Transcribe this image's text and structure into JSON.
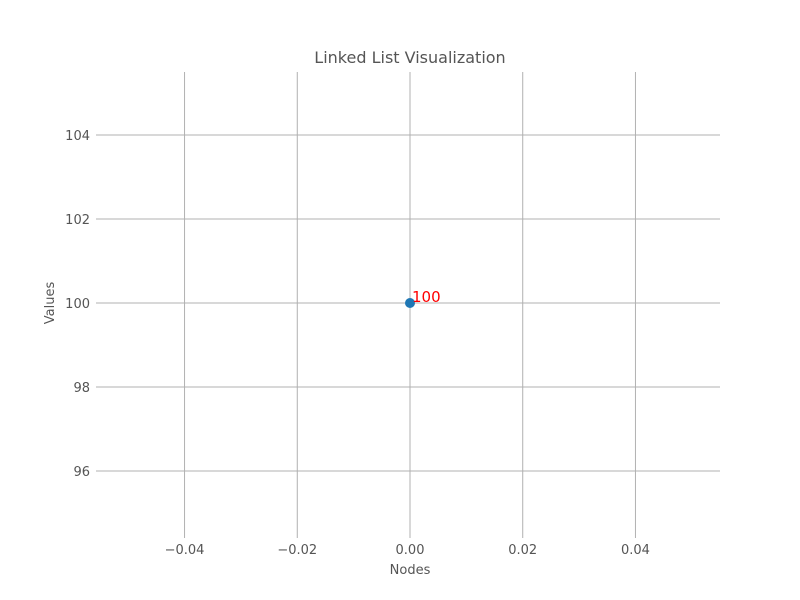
{
  "chart_data": {
    "type": "scatter",
    "title": "Linked List Visualization",
    "xlabel": "Nodes",
    "ylabel": "Values",
    "xlim": [
      -0.055,
      0.055
    ],
    "ylim": [
      94.5,
      105.5
    ],
    "xticks": [
      -0.04,
      -0.02,
      0.0,
      0.02,
      0.04
    ],
    "xtick_labels": [
      "−0.04",
      "−0.02",
      "0.00",
      "0.02",
      "0.04"
    ],
    "yticks": [
      96,
      98,
      100,
      102,
      104
    ],
    "ytick_labels": [
      "96",
      "98",
      "100",
      "102",
      "104"
    ],
    "grid": true,
    "series": [
      {
        "points": [
          {
            "x": 0.0,
            "y": 100,
            "label": "100"
          }
        ],
        "color": "#1f77b4"
      }
    ],
    "label_color": "#ff0000",
    "grid_color": "#b0b0b0",
    "text_color": "#555555"
  }
}
